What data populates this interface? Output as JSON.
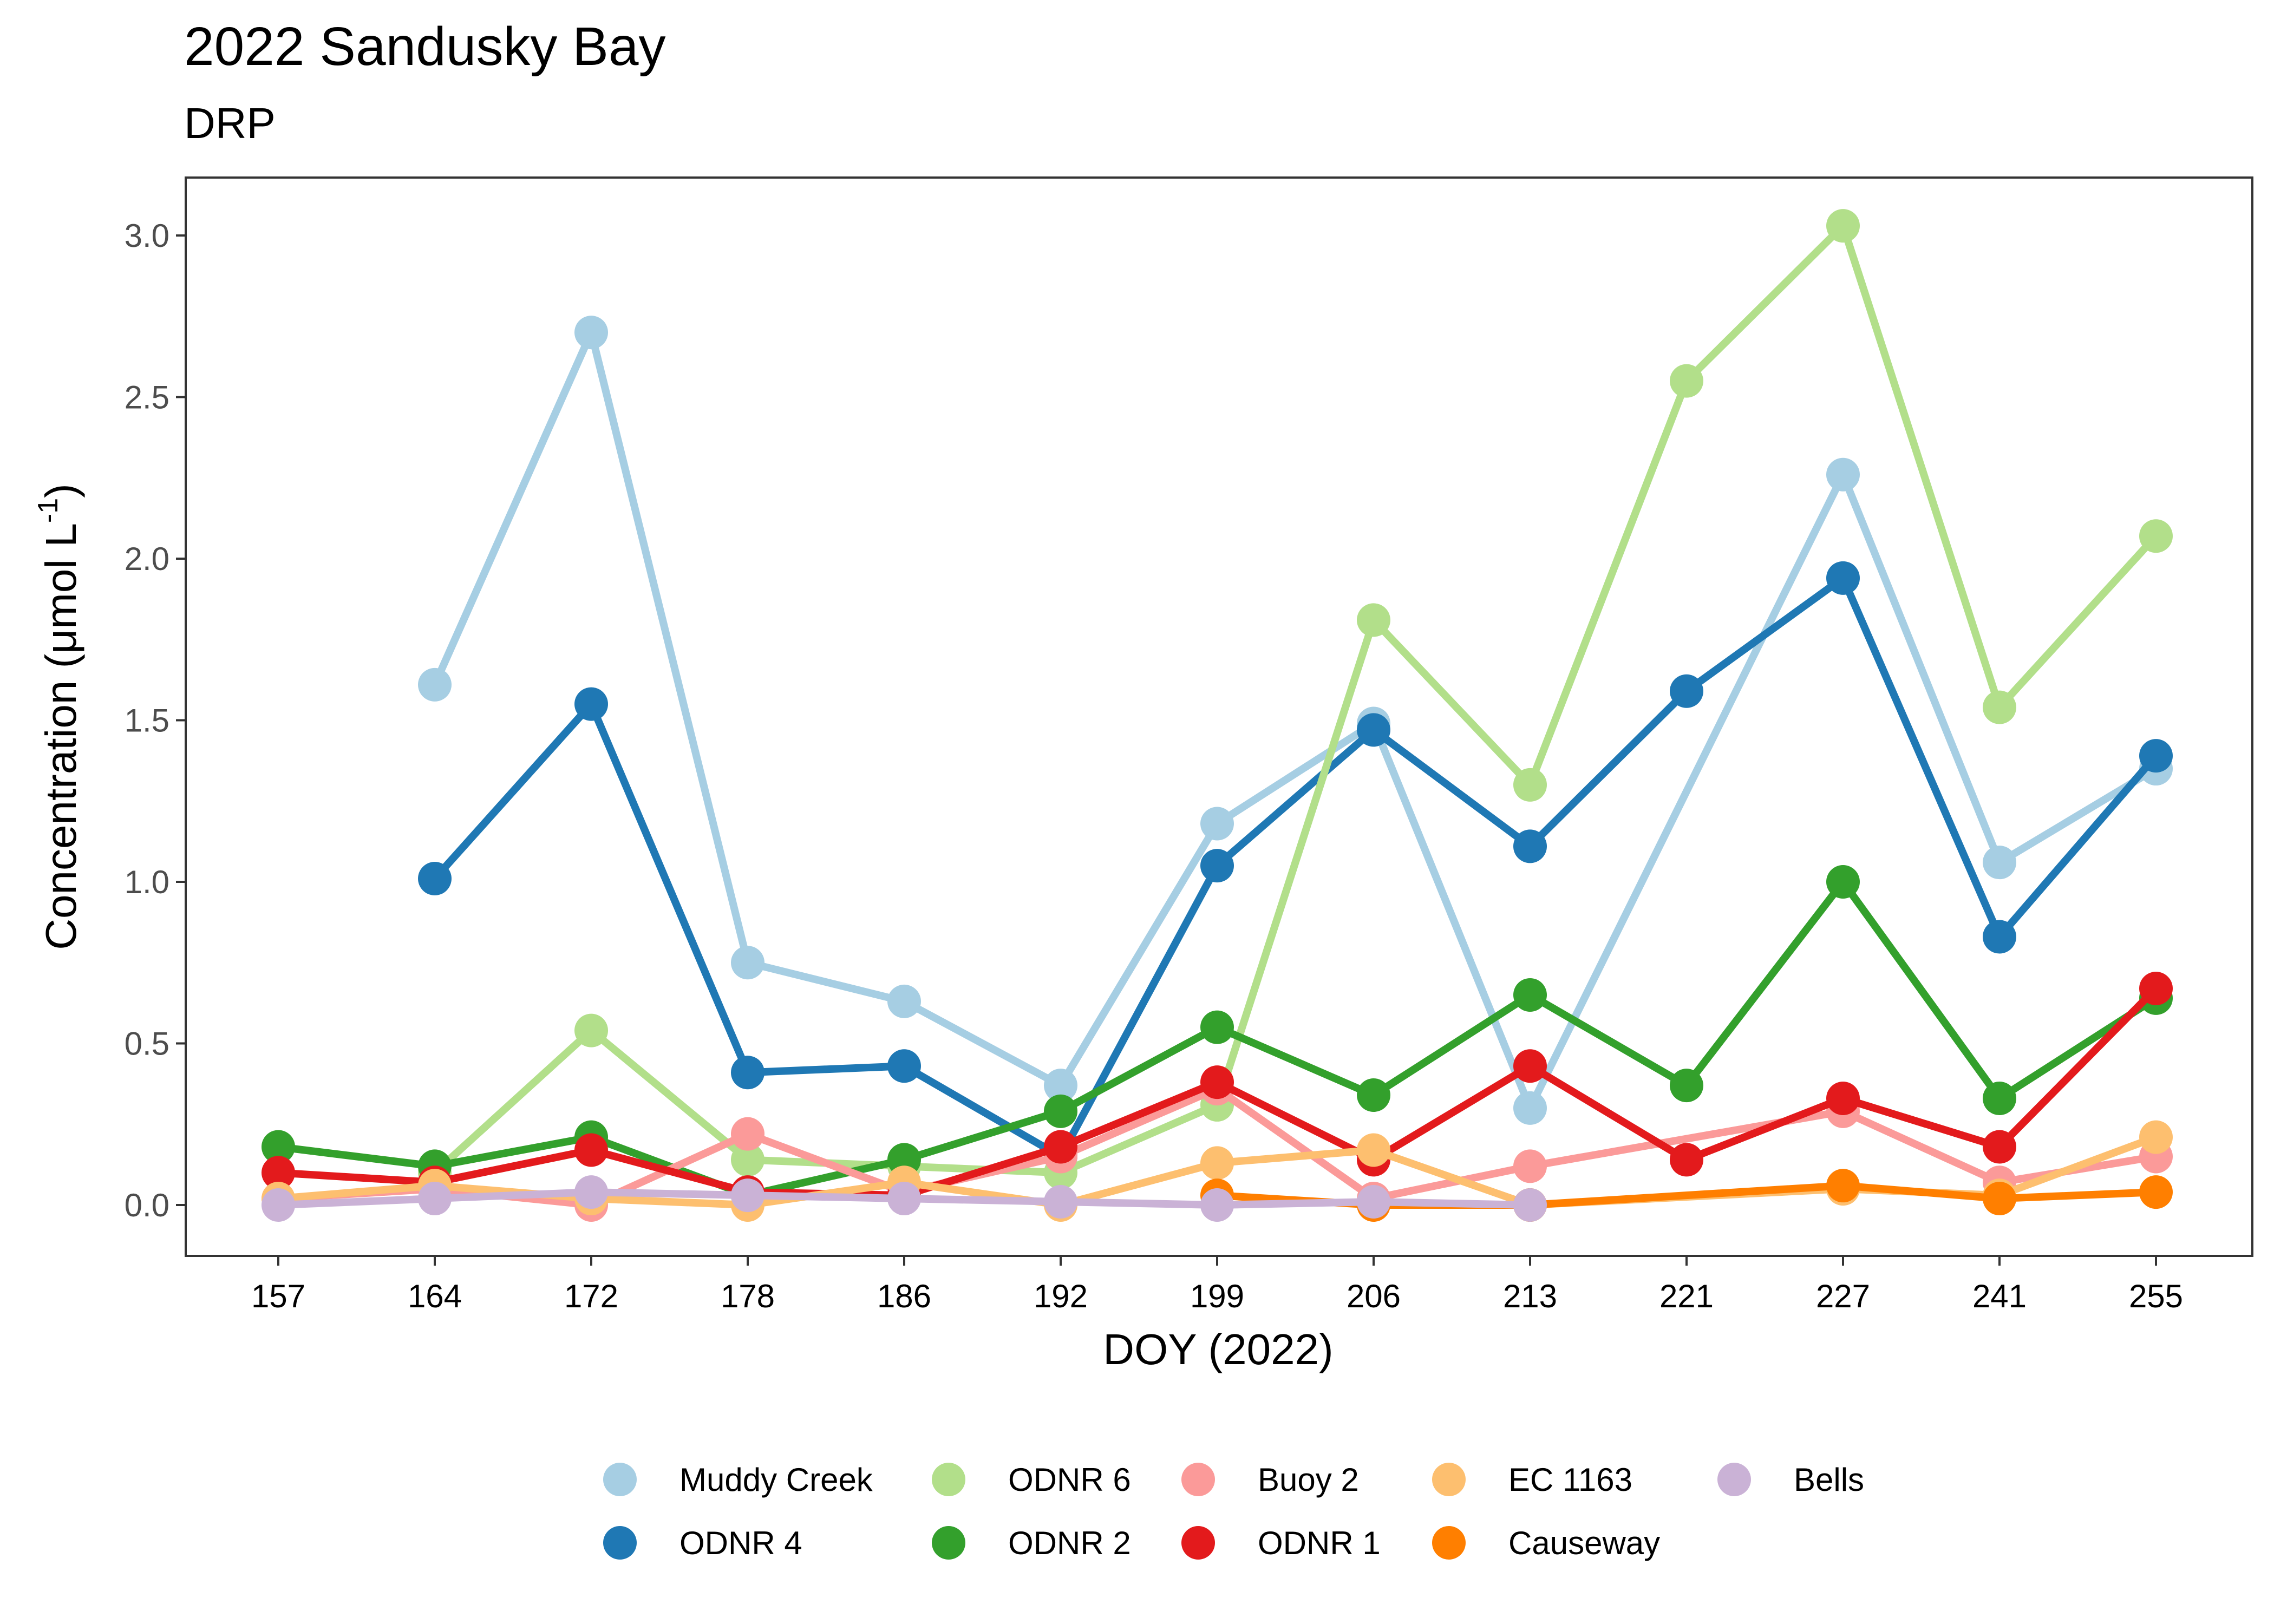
{
  "chart_data": {
    "type": "line",
    "title": "2022 Sandusky Bay",
    "subtitle": "DRP",
    "xlabel": "DOY (2022)",
    "ylabel_main": "Concentration (μmol L",
    "ylabel_sup": "-1",
    "ylabel_close": ")",
    "categories": [
      "157",
      "164",
      "172",
      "178",
      "186",
      "192",
      "199",
      "206",
      "213",
      "221",
      "227",
      "241",
      "255"
    ],
    "ylim": [
      -0.15,
      3.2
    ],
    "yticks": [
      0.0,
      0.5,
      1.0,
      1.5,
      2.0,
      2.5,
      3.0
    ],
    "ytick_labels": [
      "0.0",
      "0.5",
      "1.0",
      "1.5",
      "2.0",
      "2.5",
      "3.0"
    ],
    "grid": false,
    "legend_position": "bottom",
    "series": [
      {
        "name": "Muddy Creek",
        "color": "#a6cee3",
        "values": [
          null,
          1.61,
          2.7,
          0.75,
          0.63,
          0.37,
          1.18,
          1.49,
          0.3,
          null,
          2.26,
          1.06,
          1.35
        ]
      },
      {
        "name": "ODNR 4",
        "color": "#1f78b4",
        "values": [
          null,
          1.01,
          1.55,
          0.41,
          0.43,
          0.15,
          1.05,
          1.47,
          1.11,
          1.59,
          1.94,
          0.83,
          1.39
        ]
      },
      {
        "name": "ODNR 6",
        "color": "#b2df8a",
        "values": [
          null,
          0.1,
          0.54,
          0.14,
          0.12,
          0.1,
          0.31,
          1.81,
          1.3,
          2.55,
          3.03,
          1.54,
          2.07
        ]
      },
      {
        "name": "ODNR 2",
        "color": "#33a02c",
        "values": [
          0.18,
          0.12,
          0.21,
          0.03,
          0.14,
          0.29,
          0.55,
          0.34,
          0.65,
          0.37,
          1.0,
          0.33,
          0.64
        ]
      },
      {
        "name": "Buoy 2",
        "color": "#fb9a99",
        "values": [
          0.02,
          0.05,
          0.0,
          0.22,
          0.04,
          0.15,
          0.36,
          0.02,
          0.12,
          null,
          0.29,
          0.07,
          0.15
        ]
      },
      {
        "name": "ODNR 1",
        "color": "#e31a1c",
        "values": [
          0.1,
          0.07,
          0.17,
          0.04,
          0.03,
          0.18,
          0.38,
          0.14,
          0.43,
          0.14,
          0.33,
          0.18,
          0.67
        ]
      },
      {
        "name": "EC 1163",
        "color": "#fdbf6f",
        "values": [
          0.02,
          0.06,
          0.02,
          0.0,
          0.07,
          0.0,
          0.13,
          0.17,
          0.0,
          null,
          0.05,
          0.03,
          0.21
        ]
      },
      {
        "name": "Causeway",
        "color": "#ff7f00",
        "values": [
          null,
          null,
          null,
          null,
          null,
          null,
          0.03,
          0.0,
          0.0,
          null,
          0.06,
          0.02,
          0.04
        ]
      },
      {
        "name": "Bells",
        "color": "#cab2d6",
        "values": [
          0.0,
          0.02,
          0.04,
          0.03,
          0.02,
          0.01,
          0.0,
          0.01,
          0.0,
          null,
          null,
          null,
          null
        ]
      }
    ],
    "legend_rows": [
      [
        "Muddy Creek",
        "ODNR 6",
        "Buoy 2",
        "EC 1163",
        "Bells"
      ],
      [
        "ODNR 4",
        "ODNR 2",
        "ODNR 1",
        "Causeway"
      ]
    ]
  }
}
